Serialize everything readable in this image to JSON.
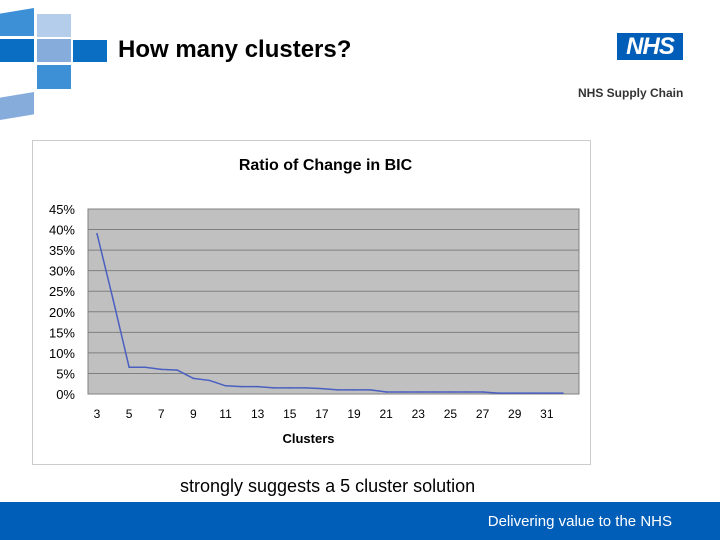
{
  "slide": {
    "title": "How many clusters?",
    "logo": "NHS",
    "logo_sub": "NHS Supply Chain",
    "caption": "strongly suggests a 5 cluster solution",
    "footer": "Delivering value to the NHS"
  },
  "colors": {
    "brand": "#005eb8",
    "line": "#4a5fc1",
    "plot_bg": "#c0c0c0"
  },
  "chart_data": {
    "type": "line",
    "title": "Ratio of Change in BIC",
    "xlabel": "Clusters",
    "ylabel": "",
    "x": [
      3,
      4,
      5,
      6,
      7,
      8,
      9,
      10,
      11,
      12,
      13,
      14,
      15,
      16,
      17,
      18,
      19,
      20,
      21,
      22,
      23,
      24,
      25,
      26,
      27,
      28,
      29,
      30,
      31,
      32
    ],
    "values": [
      39,
      23,
      6.5,
      6.5,
      6,
      5.8,
      3.8,
      3.3,
      2,
      1.8,
      1.8,
      1.5,
      1.5,
      1.5,
      1.3,
      1,
      1,
      1,
      0.5,
      0.5,
      0.5,
      0.5,
      0.5,
      0.5,
      0.5,
      0.2,
      0.2,
      0.2,
      0.2,
      0.2
    ],
    "ylim": [
      0,
      45
    ],
    "yticks": [
      "0%",
      "5%",
      "10%",
      "15%",
      "20%",
      "25%",
      "30%",
      "35%",
      "40%",
      "45%"
    ],
    "xticks": [
      "3",
      "5",
      "7",
      "9",
      "11",
      "13",
      "15",
      "17",
      "19",
      "21",
      "23",
      "25",
      "27",
      "29",
      "31"
    ],
    "grid": true,
    "legend": "none"
  }
}
